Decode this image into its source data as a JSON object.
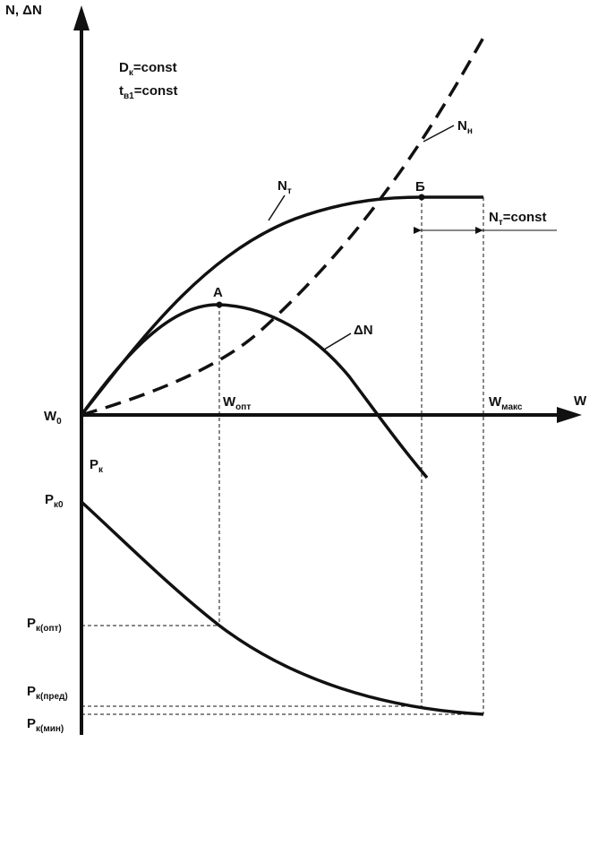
{
  "colors": {
    "ink": "#111111",
    "background": "#ffffff"
  },
  "axes": {
    "y_upper": "N, ΔN",
    "x": "W",
    "origin": "W",
    "origin_sub": "0",
    "y_lower": "P",
    "y_lower_sub": "к"
  },
  "notes": {
    "dk_main": "D",
    "dk_sub": "к",
    "dk_rest": "=const",
    "tv_main": "t",
    "tv_sub": "в1",
    "tv_rest": "=const"
  },
  "curves": {
    "nt_main": "N",
    "nt_sub": "т",
    "nn_main": "N",
    "nn_sub": "н",
    "dn": "ΔN"
  },
  "points": {
    "a": "А",
    "b": "Б"
  },
  "ticks": {
    "w_opt_main": "W",
    "w_opt_sub": "опт",
    "w_max_main": "W",
    "w_max_sub": "макс"
  },
  "nt_const": {
    "main": "N",
    "sub": "т",
    "rest": "=const"
  },
  "pressure": {
    "pk0_main": "P",
    "pk0_sub": "к0",
    "pk_opt_main": "P",
    "pk_opt_sub": "к(опт)",
    "pk_pred_main": "P",
    "pk_pred_sub": "к(пред)",
    "pk_min_main": "P",
    "pk_min_sub": "к(мин)"
  }
}
